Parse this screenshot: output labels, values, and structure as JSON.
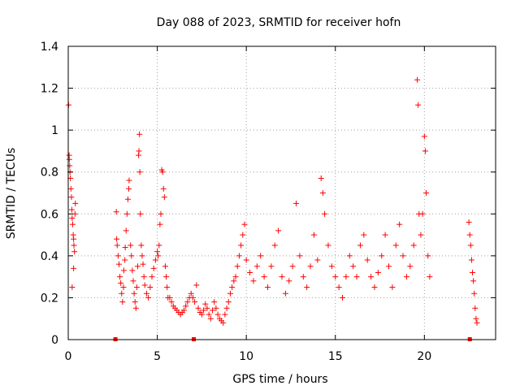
{
  "chart_data": {
    "type": "scatter",
    "title": "Day 088 of 2023, SRMTID for receiver hofn",
    "xlabel": "GPS time / hours",
    "ylabel": "SRMTID / TECUs",
    "xlim": [
      0,
      24
    ],
    "ylim": [
      0,
      1.4
    ],
    "xticks": [
      "0",
      "5",
      "10",
      "15",
      "20"
    ],
    "yticks": [
      "0",
      "0.2",
      "0.4",
      "0.6",
      "0.8",
      "1",
      "1.2",
      "1.4"
    ],
    "grid": true,
    "series": [
      {
        "name": "SRMTID",
        "color": "#ff0000",
        "marker": "plus",
        "points": [
          [
            0.02,
            1.12
          ],
          [
            0.05,
            0.88
          ],
          [
            0.06,
            0.86
          ],
          [
            0.08,
            0.83
          ],
          [
            0.1,
            0.8
          ],
          [
            0.12,
            0.77
          ],
          [
            0.15,
            0.72
          ],
          [
            0.18,
            0.68
          ],
          [
            0.2,
            0.62
          ],
          [
            0.22,
            0.58
          ],
          [
            0.25,
            0.55
          ],
          [
            0.28,
            0.5
          ],
          [
            0.3,
            0.48
          ],
          [
            0.32,
            0.45
          ],
          [
            0.35,
            0.42
          ],
          [
            0.38,
            0.6
          ],
          [
            0.4,
            0.65
          ],
          [
            0.22,
            0.25
          ],
          [
            0.3,
            0.34
          ],
          [
            2.7,
            0.61
          ],
          [
            2.72,
            0.48
          ],
          [
            2.75,
            0.45
          ],
          [
            2.8,
            0.4
          ],
          [
            2.85,
            0.36
          ],
          [
            2.9,
            0.3
          ],
          [
            2.95,
            0.27
          ],
          [
            3.0,
            0.22
          ],
          [
            3.05,
            0.18
          ],
          [
            3.1,
            0.25
          ],
          [
            3.12,
            0.33
          ],
          [
            3.18,
            0.38
          ],
          [
            3.2,
            0.44
          ],
          [
            3.25,
            0.52
          ],
          [
            3.3,
            0.6
          ],
          [
            3.35,
            0.67
          ],
          [
            3.4,
            0.72
          ],
          [
            3.42,
            0.76
          ],
          [
            3.5,
            0.45
          ],
          [
            3.55,
            0.4
          ],
          [
            3.6,
            0.33
          ],
          [
            3.65,
            0.28
          ],
          [
            3.7,
            0.22
          ],
          [
            3.75,
            0.18
          ],
          [
            3.8,
            0.15
          ],
          [
            3.85,
            0.25
          ],
          [
            3.9,
            0.35
          ],
          [
            3.95,
            0.88
          ],
          [
            3.97,
            0.9
          ],
          [
            4.0,
            0.98
          ],
          [
            4.02,
            0.8
          ],
          [
            4.05,
            0.6
          ],
          [
            4.1,
            0.45
          ],
          [
            4.15,
            0.4
          ],
          [
            4.2,
            0.36
          ],
          [
            4.25,
            0.3
          ],
          [
            4.3,
            0.26
          ],
          [
            4.4,
            0.22
          ],
          [
            4.5,
            0.2
          ],
          [
            4.6,
            0.25
          ],
          [
            4.7,
            0.3
          ],
          [
            4.8,
            0.34
          ],
          [
            4.9,
            0.38
          ],
          [
            5.0,
            0.42
          ],
          [
            5.05,
            0.4
          ],
          [
            5.1,
            0.45
          ],
          [
            5.15,
            0.55
          ],
          [
            5.2,
            0.6
          ],
          [
            5.25,
            0.81
          ],
          [
            5.3,
            0.8
          ],
          [
            5.35,
            0.72
          ],
          [
            5.4,
            0.68
          ],
          [
            5.45,
            0.35
          ],
          [
            5.5,
            0.3
          ],
          [
            5.55,
            0.25
          ],
          [
            5.6,
            0.2
          ],
          [
            5.7,
            0.2
          ],
          [
            5.8,
            0.18
          ],
          [
            5.9,
            0.16
          ],
          [
            6.0,
            0.15
          ],
          [
            6.1,
            0.14
          ],
          [
            6.2,
            0.13
          ],
          [
            6.3,
            0.12
          ],
          [
            6.4,
            0.13
          ],
          [
            6.5,
            0.14
          ],
          [
            6.6,
            0.16
          ],
          [
            6.7,
            0.18
          ],
          [
            6.8,
            0.2
          ],
          [
            6.9,
            0.22
          ],
          [
            7.0,
            0.2
          ],
          [
            7.1,
            0.18
          ],
          [
            7.2,
            0.26
          ],
          [
            7.3,
            0.15
          ],
          [
            7.4,
            0.13
          ],
          [
            7.5,
            0.12
          ],
          [
            7.6,
            0.14
          ],
          [
            7.7,
            0.17
          ],
          [
            7.8,
            0.15
          ],
          [
            7.9,
            0.12
          ],
          [
            8.0,
            0.1
          ],
          [
            8.1,
            0.14
          ],
          [
            8.2,
            0.18
          ],
          [
            8.3,
            0.15
          ],
          [
            8.4,
            0.12
          ],
          [
            8.5,
            0.1
          ],
          [
            8.6,
            0.09
          ],
          [
            8.7,
            0.08
          ],
          [
            8.8,
            0.12
          ],
          [
            8.9,
            0.15
          ],
          [
            9.0,
            0.18
          ],
          [
            9.1,
            0.22
          ],
          [
            9.2,
            0.25
          ],
          [
            9.3,
            0.28
          ],
          [
            9.4,
            0.3
          ],
          [
            9.5,
            0.35
          ],
          [
            9.6,
            0.4
          ],
          [
            9.7,
            0.45
          ],
          [
            9.8,
            0.5
          ],
          [
            9.9,
            0.55
          ],
          [
            10.0,
            0.38
          ],
          [
            10.2,
            0.32
          ],
          [
            10.4,
            0.28
          ],
          [
            10.6,
            0.35
          ],
          [
            10.8,
            0.4
          ],
          [
            11.0,
            0.3
          ],
          [
            11.2,
            0.25
          ],
          [
            11.4,
            0.35
          ],
          [
            11.6,
            0.45
          ],
          [
            11.8,
            0.52
          ],
          [
            12.0,
            0.3
          ],
          [
            12.2,
            0.22
          ],
          [
            12.4,
            0.28
          ],
          [
            12.6,
            0.35
          ],
          [
            12.8,
            0.65
          ],
          [
            13.0,
            0.4
          ],
          [
            13.2,
            0.3
          ],
          [
            13.4,
            0.25
          ],
          [
            13.6,
            0.35
          ],
          [
            13.8,
            0.5
          ],
          [
            14.0,
            0.38
          ],
          [
            14.2,
            0.77
          ],
          [
            14.3,
            0.7
          ],
          [
            14.4,
            0.6
          ],
          [
            14.6,
            0.45
          ],
          [
            14.8,
            0.35
          ],
          [
            15.0,
            0.3
          ],
          [
            15.2,
            0.25
          ],
          [
            15.4,
            0.2
          ],
          [
            15.6,
            0.3
          ],
          [
            15.8,
            0.4
          ],
          [
            16.0,
            0.35
          ],
          [
            16.2,
            0.3
          ],
          [
            16.4,
            0.45
          ],
          [
            16.6,
            0.5
          ],
          [
            16.8,
            0.38
          ],
          [
            17.0,
            0.3
          ],
          [
            17.2,
            0.25
          ],
          [
            17.4,
            0.32
          ],
          [
            17.6,
            0.4
          ],
          [
            17.8,
            0.5
          ],
          [
            18.0,
            0.35
          ],
          [
            18.2,
            0.25
          ],
          [
            18.4,
            0.45
          ],
          [
            18.6,
            0.55
          ],
          [
            18.8,
            0.4
          ],
          [
            19.0,
            0.3
          ],
          [
            19.2,
            0.35
          ],
          [
            19.4,
            0.45
          ],
          [
            19.6,
            1.24
          ],
          [
            19.65,
            1.12
          ],
          [
            19.7,
            0.6
          ],
          [
            19.8,
            0.5
          ],
          [
            19.9,
            0.6
          ],
          [
            20.0,
            0.97
          ],
          [
            20.05,
            0.9
          ],
          [
            20.1,
            0.7
          ],
          [
            20.2,
            0.4
          ],
          [
            20.3,
            0.3
          ],
          [
            22.5,
            0.56
          ],
          [
            22.55,
            0.5
          ],
          [
            22.6,
            0.45
          ],
          [
            22.65,
            0.38
          ],
          [
            22.7,
            0.32
          ],
          [
            22.75,
            0.28
          ],
          [
            22.8,
            0.22
          ],
          [
            22.85,
            0.15
          ],
          [
            22.9,
            0.1
          ],
          [
            22.95,
            0.08
          ]
        ]
      }
    ],
    "markers_at_zero": [
      2.65,
      7.05,
      22.55
    ]
  }
}
